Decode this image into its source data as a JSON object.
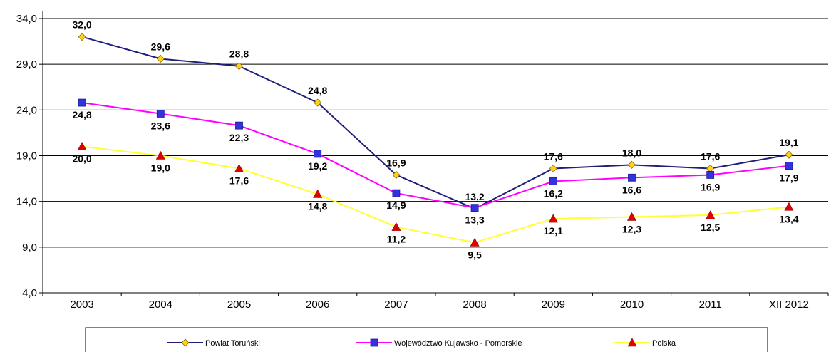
{
  "chart_data": {
    "type": "line",
    "categories": [
      "2003",
      "2004",
      "2005",
      "2006",
      "2007",
      "2008",
      "2009",
      "2010",
      "2011",
      "XII 2012"
    ],
    "ylim": [
      4.0,
      34.0
    ],
    "yticks": [
      "4,0",
      "9,0",
      "14,0",
      "19,0",
      "24,0",
      "29,0",
      "34,0"
    ],
    "ytick_values": [
      4,
      9,
      14,
      19,
      24,
      29,
      34
    ],
    "grid": true,
    "legend_position": "bottom",
    "series": [
      {
        "name": "Powiat Toruński",
        "values": [
          32.0,
          29.6,
          28.8,
          24.8,
          16.9,
          13.2,
          17.6,
          18.0,
          17.6,
          19.1
        ],
        "labels": [
          "32,0",
          "29,6",
          "28,8",
          "24,8",
          "16,9",
          "13,2",
          "17,6",
          "18,0",
          "17,6",
          "19,1"
        ],
        "label_position": "above",
        "line_color": "#1f1f7a",
        "marker_color": "#ffd11a",
        "marker": "diamond"
      },
      {
        "name": "Województwo  Kujawsko - Pomorskie",
        "values": [
          24.8,
          23.6,
          22.3,
          19.2,
          14.9,
          13.3,
          16.2,
          16.6,
          16.9,
          17.9
        ],
        "labels": [
          "24,8",
          "23,6",
          "22,3",
          "19,2",
          "14,9",
          "13,3",
          "16,2",
          "16,6",
          "16,9",
          "17,9"
        ],
        "label_position": "below",
        "line_color": "#ff00ff",
        "marker_color": "#3333dd",
        "marker": "square"
      },
      {
        "name": "Polska",
        "values": [
          20.0,
          19.0,
          17.6,
          14.8,
          11.2,
          9.5,
          12.1,
          12.3,
          12.5,
          13.4
        ],
        "labels": [
          "20,0",
          "19,0",
          "17,6",
          "14,8",
          "11,2",
          "9,5",
          "12,1",
          "12,3",
          "12,5",
          "13,4"
        ],
        "label_position": "below",
        "line_color": "#ffff33",
        "marker_color": "#e00000",
        "marker": "triangle"
      }
    ]
  }
}
